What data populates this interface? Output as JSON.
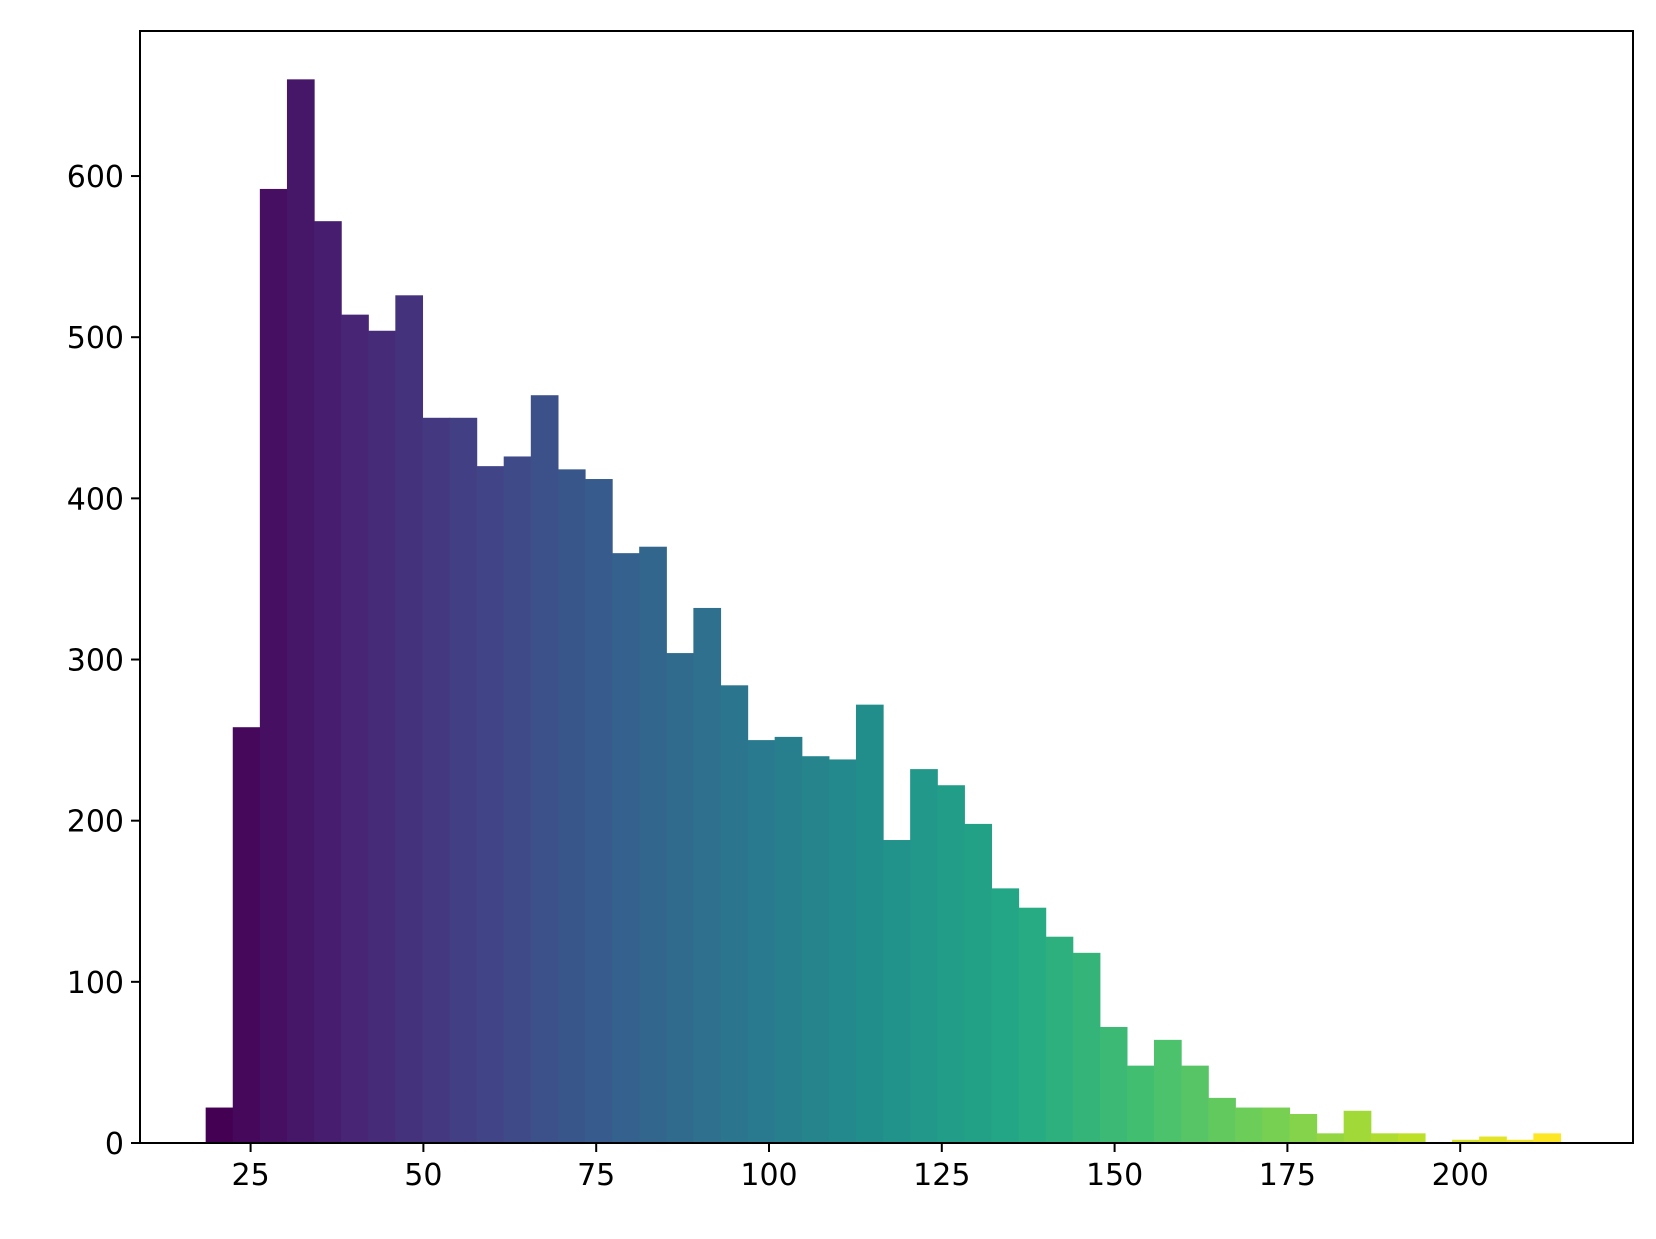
{
  "chart_data": {
    "type": "bar",
    "title": "",
    "xlabel": "",
    "ylabel": "",
    "xlim": [
      9,
      225
    ],
    "ylim": [
      0,
      690
    ],
    "bin_width": 3.92,
    "bin_start": 18.5,
    "values": [
      22,
      258,
      592,
      660,
      572,
      514,
      504,
      526,
      450,
      450,
      420,
      426,
      464,
      418,
      412,
      366,
      370,
      304,
      332,
      284,
      250,
      252,
      240,
      238,
      272,
      188,
      232,
      222,
      198,
      158,
      146,
      128,
      118,
      72,
      48,
      64,
      48,
      28,
      22,
      22,
      18,
      6,
      20,
      6,
      6,
      0,
      2,
      4,
      2,
      6
    ],
    "x_ticks": [
      {
        "value": 25,
        "label": "25"
      },
      {
        "value": 50,
        "label": "50"
      },
      {
        "value": 75,
        "label": "75"
      },
      {
        "value": 100,
        "label": "100"
      },
      {
        "value": 125,
        "label": "125"
      },
      {
        "value": 150,
        "label": "150"
      },
      {
        "value": 175,
        "label": "175"
      },
      {
        "value": 200,
        "label": "200"
      }
    ],
    "y_ticks": [
      {
        "value": 0,
        "label": "0"
      },
      {
        "value": 100,
        "label": "100"
      },
      {
        "value": 200,
        "label": "200"
      },
      {
        "value": 300,
        "label": "300"
      },
      {
        "value": 400,
        "label": "400"
      },
      {
        "value": 500,
        "label": "500"
      },
      {
        "value": 600,
        "label": "600"
      }
    ],
    "colormap": "viridis",
    "grid": false,
    "legend": "none"
  }
}
